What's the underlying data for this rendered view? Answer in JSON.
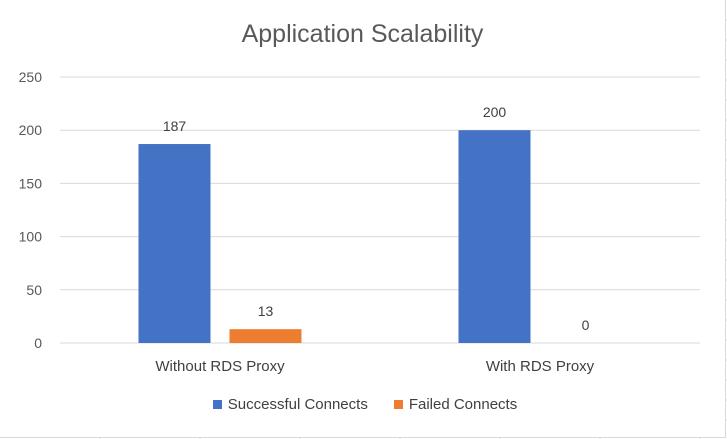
{
  "chart_data": {
    "type": "bar",
    "title": "Application Scalability",
    "categories": [
      "Without RDS Proxy",
      "With RDS Proxy"
    ],
    "series": [
      {
        "name": "Successful Connects",
        "values": [
          187,
          200
        ],
        "color": "#4472C4"
      },
      {
        "name": "Failed Connects",
        "values": [
          13,
          0
        ],
        "color": "#ED7D31"
      }
    ],
    "ylim": [
      0,
      250
    ],
    "yticks": [
      0,
      50,
      100,
      150,
      200,
      250
    ],
    "xlabel": "",
    "ylabel": "",
    "grid": true,
    "legend_position": "bottom",
    "data_labels": true
  }
}
